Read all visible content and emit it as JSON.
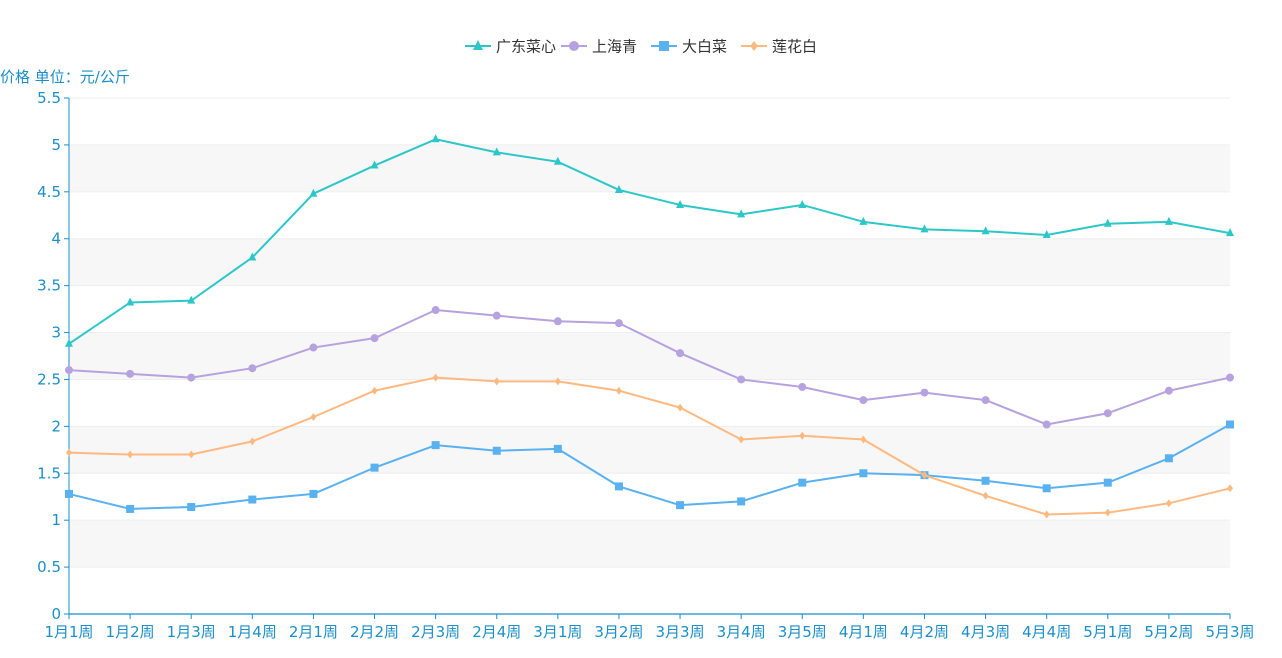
{
  "chart_data": {
    "type": "line",
    "ylabel": "价格 单位：元/公斤",
    "ylim": [
      0,
      5.5
    ],
    "y_ticks": [
      "0",
      "0.5",
      "1",
      "1.5",
      "2",
      "2.5",
      "3",
      "3.5",
      "4",
      "4.5",
      "5",
      "5.5"
    ],
    "categories": [
      "1月1周",
      "1月2周",
      "1月3周",
      "1月4周",
      "2月1周",
      "2月2周",
      "2月3周",
      "2月4周",
      "3月1周",
      "3月2周",
      "3月3周",
      "3月4周",
      "3月5周",
      "4月1周",
      "4月2周",
      "4月3周",
      "4月4周",
      "5月1周",
      "5月2周",
      "5月3周"
    ],
    "legend_position": "top-center",
    "grid": "horizontal-bands",
    "series": [
      {
        "name": "广东菜心",
        "color": "#2ec7c9",
        "marker": "triangle",
        "values": [
          2.88,
          3.32,
          3.34,
          3.8,
          4.48,
          4.78,
          5.06,
          4.92,
          4.82,
          4.52,
          4.36,
          4.26,
          4.36,
          4.18,
          4.1,
          4.08,
          4.04,
          4.16,
          4.18,
          4.06
        ]
      },
      {
        "name": "上海青",
        "color": "#b6a2de",
        "marker": "circle",
        "values": [
          2.6,
          2.56,
          2.52,
          2.62,
          2.84,
          2.94,
          3.24,
          3.18,
          3.12,
          3.1,
          2.78,
          2.5,
          2.42,
          2.28,
          2.36,
          2.28,
          2.02,
          2.14,
          2.38,
          2.52
        ]
      },
      {
        "name": "大白菜",
        "color": "#5ab1ef",
        "marker": "square",
        "values": [
          1.28,
          1.12,
          1.14,
          1.22,
          1.28,
          1.56,
          1.8,
          1.74,
          1.76,
          1.36,
          1.16,
          1.2,
          1.4,
          1.5,
          1.48,
          1.42,
          1.34,
          1.4,
          1.66,
          2.02
        ]
      },
      {
        "name": "莲花白",
        "color": "#ffb980",
        "marker": "diamond",
        "values": [
          1.72,
          1.7,
          1.7,
          1.84,
          2.1,
          2.38,
          2.52,
          2.48,
          2.48,
          2.38,
          2.2,
          1.86,
          1.9,
          1.86,
          1.48,
          1.26,
          1.06,
          1.08,
          1.18,
          1.34
        ]
      }
    ]
  }
}
